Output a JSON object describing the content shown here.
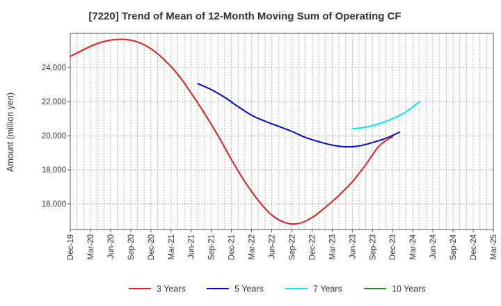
{
  "chart_data": {
    "type": "line",
    "title": "[7220]  Trend of Mean of 12-Month Moving Sum of Operating CF",
    "xlabel": "",
    "ylabel": "Amount (million yen)",
    "x_tick_labels": [
      "Dec-19",
      "Mar-20",
      "Jun-20",
      "Sep-20",
      "Dec-20",
      "Mar-21",
      "Jun-21",
      "Sep-21",
      "Dec-21",
      "Mar-22",
      "Jun-22",
      "Sep-22",
      "Dec-22",
      "Mar-23",
      "Jun-23",
      "Sep-23",
      "Dec-23",
      "Mar-24",
      "Jun-24",
      "Sep-24",
      "Dec-24",
      "Mar-25"
    ],
    "y_ticks": [
      16000,
      18000,
      20000,
      22000,
      24000
    ],
    "y_tick_labels": [
      "16,000",
      "18,000",
      "20,000",
      "22,000",
      "24,000"
    ],
    "ylim": [
      14500,
      26000
    ],
    "grid": true,
    "legend_position": "bottom",
    "series": [
      {
        "name": "3 Years",
        "color": "#e31a1c",
        "start_index": 0,
        "values": [
          24650,
          25050,
          25400,
          25600,
          25650,
          25500,
          25100,
          24450,
          23600,
          22500,
          21300,
          20000,
          18600,
          17300,
          16200,
          15350,
          14900,
          14850,
          15200,
          15800,
          16500,
          17300,
          18300,
          19400,
          19950
        ]
      },
      {
        "name": "5 Years",
        "color": "#0000cc",
        "start_index": 19,
        "values": [
          23050,
          22700,
          22250,
          21700,
          21200,
          20850,
          20550,
          20250,
          19900,
          19650,
          19450,
          19350,
          19400,
          19600,
          19850,
          20200
        ]
      },
      {
        "name": "7 Years",
        "color": "#00e5ee",
        "start_index": 42,
        "values": [
          20400,
          20500,
          20700,
          21000,
          21400,
          22000
        ]
      },
      {
        "name": "10 Years",
        "color": "#228b22",
        "start_index": 0,
        "values": []
      }
    ]
  }
}
